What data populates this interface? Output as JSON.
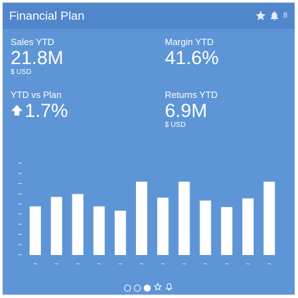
{
  "header": {
    "title": "Financial Plan",
    "icons": [
      "star-icon",
      "bell-icon"
    ],
    "notification_count": "8"
  },
  "kpis": {
    "sales_ytd": {
      "label": "Sales YTD",
      "value": "21.8M",
      "unit": "$ USD"
    },
    "margin_ytd": {
      "label": "Margin YTD",
      "value": "41.6%"
    },
    "ytd_vs_plan": {
      "label": "YTD vs Plan",
      "value": "1.7%",
      "trend": "up"
    },
    "returns_ytd": {
      "label": "Returns YTD",
      "value": "6.9M",
      "unit": "$ USD"
    }
  },
  "chart_data": {
    "type": "bar",
    "title": "",
    "xlabel": "",
    "ylabel": "",
    "categories": [
      "~",
      "~",
      "~",
      "~",
      "~",
      "~",
      "~",
      "~",
      "~",
      "~",
      "~",
      "~"
    ],
    "y_tick_labels": [
      "~",
      "~",
      "~",
      "~",
      "~",
      "~",
      "~",
      "~",
      "~",
      "~"
    ],
    "values": [
      67,
      80,
      84,
      67,
      61,
      101,
      79,
      101,
      75,
      66,
      78,
      101
    ],
    "ylim": [
      0,
      130
    ],
    "grid": false,
    "bar_color": "#ffffff"
  },
  "pager": {
    "dots": [
      false,
      false,
      true
    ],
    "icons": [
      "star-outline-icon",
      "bell-outline-icon"
    ]
  },
  "colors": {
    "card_background": "#5e95d6",
    "header_background": "#4f86cc",
    "foreground": "#ffffff"
  }
}
